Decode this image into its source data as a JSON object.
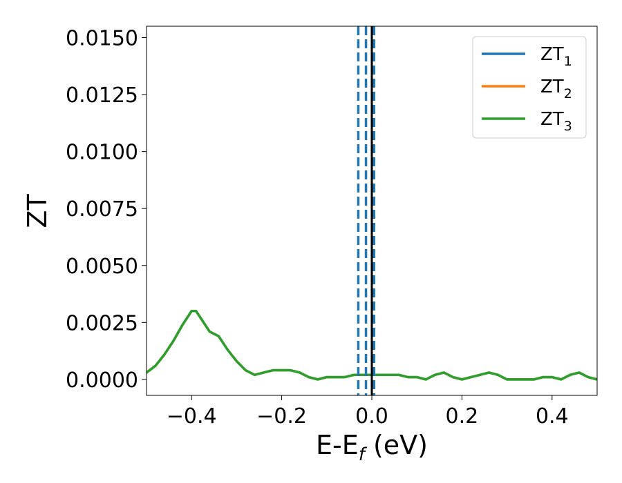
{
  "chart_data": {
    "type": "line",
    "xlabel": {
      "main": "E-E",
      "sub": "f",
      "suffix": " (eV)"
    },
    "ylabel": "ZT",
    "xlim": [
      -0.5,
      0.5
    ],
    "ylim": [
      -0.0007,
      0.0155
    ],
    "xticks": [
      -0.4,
      -0.2,
      0.0,
      0.2,
      0.4
    ],
    "xtick_labels": [
      "−0.4",
      "−0.2",
      "0.0",
      "0.2",
      "0.4"
    ],
    "yticks": [
      0.0,
      0.0025,
      0.005,
      0.0075,
      0.01,
      0.0125,
      0.015
    ],
    "ytick_labels": [
      "0.0000",
      "0.0025",
      "0.0050",
      "0.0075",
      "0.0100",
      "0.0125",
      "0.0150"
    ],
    "legend_position": "top-right",
    "grid": false,
    "vlines": [
      {
        "x": -0.03,
        "style": "dashed",
        "color": "#1f77b4"
      },
      {
        "x": -0.013,
        "style": "dashed",
        "color": "#1f77b4"
      },
      {
        "x": 0.005,
        "style": "dashed",
        "color": "#1f77b4"
      },
      {
        "x": 0.0,
        "style": "solid",
        "color": "#000000"
      }
    ],
    "x": [
      -0.5,
      -0.48,
      -0.46,
      -0.44,
      -0.42,
      -0.4,
      -0.39,
      -0.38,
      -0.36,
      -0.34,
      -0.32,
      -0.3,
      -0.28,
      -0.26,
      -0.24,
      -0.22,
      -0.2,
      -0.18,
      -0.16,
      -0.14,
      -0.12,
      -0.1,
      -0.08,
      -0.06,
      -0.04,
      -0.02,
      0.0,
      0.02,
      0.04,
      0.06,
      0.08,
      0.1,
      0.12,
      0.14,
      0.16,
      0.18,
      0.2,
      0.22,
      0.24,
      0.26,
      0.28,
      0.3,
      0.32,
      0.34,
      0.36,
      0.38,
      0.4,
      0.42,
      0.44,
      0.46,
      0.48,
      0.5
    ],
    "series": [
      {
        "name": "ZT",
        "sub": "1",
        "color": "#1f77b4",
        "values": [
          0.0003,
          0.0006,
          0.0011,
          0.0017,
          0.0024,
          0.003,
          0.003,
          0.0027,
          0.0021,
          0.0019,
          0.0013,
          0.0008,
          0.0004,
          0.0002,
          0.0003,
          0.0004,
          0.0004,
          0.0004,
          0.0003,
          0.0001,
          0.0,
          0.0001,
          0.0001,
          0.0001,
          0.0002,
          0.0002,
          0.0002,
          0.0002,
          0.0002,
          0.0002,
          0.0001,
          0.0001,
          0.0,
          0.0002,
          0.0003,
          0.0001,
          0.0,
          0.0001,
          0.0002,
          0.0003,
          0.0002,
          0.0,
          0.0,
          0.0,
          0.0,
          0.0001,
          0.0001,
          0.0,
          0.0002,
          0.0003,
          0.0001,
          0.0
        ]
      },
      {
        "name": "ZT",
        "sub": "2",
        "color": "#ff7f0e",
        "values": [
          0.0003,
          0.0006,
          0.0011,
          0.0017,
          0.0024,
          0.003,
          0.003,
          0.0027,
          0.0021,
          0.0019,
          0.0013,
          0.0008,
          0.0004,
          0.0002,
          0.0003,
          0.0004,
          0.0004,
          0.0004,
          0.0003,
          0.0001,
          0.0,
          0.0001,
          0.0001,
          0.0001,
          0.0002,
          0.0002,
          0.0002,
          0.0002,
          0.0002,
          0.0002,
          0.0001,
          0.0001,
          0.0,
          0.0002,
          0.0003,
          0.0001,
          0.0,
          0.0001,
          0.0002,
          0.0003,
          0.0002,
          0.0,
          0.0,
          0.0,
          0.0,
          0.0001,
          0.0001,
          0.0,
          0.0002,
          0.0003,
          0.0001,
          0.0
        ]
      },
      {
        "name": "ZT",
        "sub": "3",
        "color": "#2ca02c",
        "values": [
          0.0003,
          0.0006,
          0.0011,
          0.0017,
          0.0024,
          0.003,
          0.003,
          0.0027,
          0.0021,
          0.0019,
          0.0013,
          0.0008,
          0.0004,
          0.0002,
          0.0003,
          0.0004,
          0.0004,
          0.0004,
          0.0003,
          0.0001,
          0.0,
          0.0001,
          0.0001,
          0.0001,
          0.0002,
          0.0002,
          0.0002,
          0.0002,
          0.0002,
          0.0002,
          0.0001,
          0.0001,
          0.0,
          0.0002,
          0.0003,
          0.0001,
          0.0,
          0.0001,
          0.0002,
          0.0003,
          0.0002,
          0.0,
          0.0,
          0.0,
          0.0,
          0.0001,
          0.0001,
          0.0,
          0.0002,
          0.0003,
          0.0001,
          0.0
        ]
      }
    ]
  }
}
